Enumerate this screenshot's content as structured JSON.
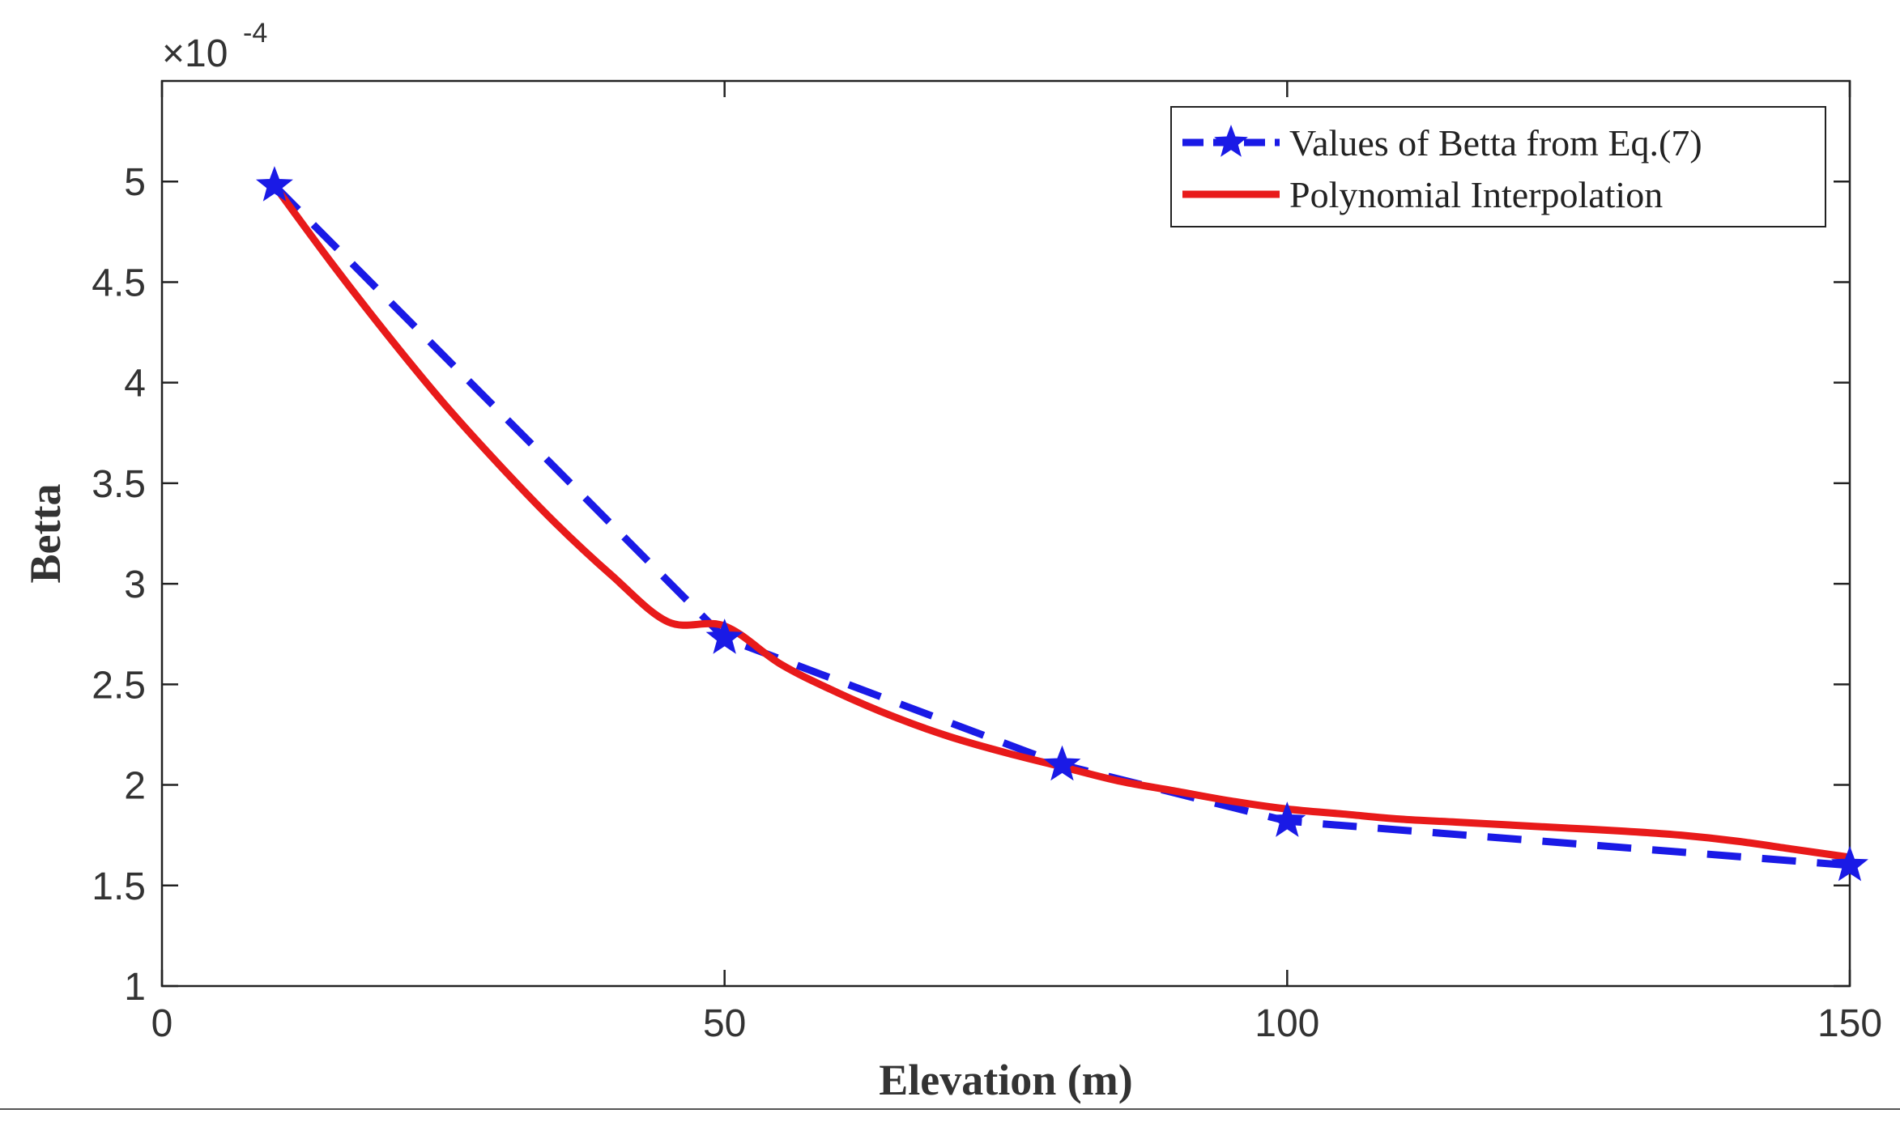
{
  "chart_data": {
    "type": "line",
    "title": "",
    "xlabel": "Elevation (m)",
    "ylabel": "Betta",
    "xlim": [
      0,
      150
    ],
    "ylim": [
      1,
      5.5
    ],
    "xticks": [
      0,
      50,
      100,
      150
    ],
    "yticks": [
      1,
      1.5,
      2,
      2.5,
      3,
      3.5,
      4,
      4.5,
      5
    ],
    "ytick_labels": [
      "1",
      "1.5",
      "2",
      "2.5",
      "3",
      "3.5",
      "4",
      "4.5",
      "5"
    ],
    "xtick_labels": [
      "0",
      "50",
      "100",
      "150"
    ],
    "y_exponent_label": "×10",
    "y_exponent_power": "-4",
    "legend_position": "top-right",
    "grid": false,
    "series": [
      {
        "name": "Values of Betta from Eq.(7)",
        "style": "dashed-star",
        "color": "#1a1ae6",
        "x": [
          10,
          50,
          80,
          100,
          150
        ],
        "y": [
          4.98,
          2.73,
          2.1,
          1.82,
          1.6
        ]
      },
      {
        "name": "Polynomial Interpolation",
        "style": "solid",
        "color": "#e81a1a",
        "x": [
          10,
          15,
          20,
          25,
          30,
          35,
          40,
          45,
          50,
          55,
          60,
          65,
          70,
          75,
          80,
          85,
          90,
          95,
          100,
          105,
          110,
          115,
          120,
          125,
          130,
          135,
          140,
          145,
          150
        ],
        "y": [
          4.98,
          4.6,
          4.24,
          3.9,
          3.59,
          3.3,
          3.04,
          2.81,
          2.79,
          2.6,
          2.46,
          2.34,
          2.24,
          2.16,
          2.09,
          2.02,
          1.97,
          1.92,
          1.88,
          1.855,
          1.83,
          1.815,
          1.8,
          1.785,
          1.77,
          1.75,
          1.72,
          1.68,
          1.64
        ]
      }
    ]
  }
}
